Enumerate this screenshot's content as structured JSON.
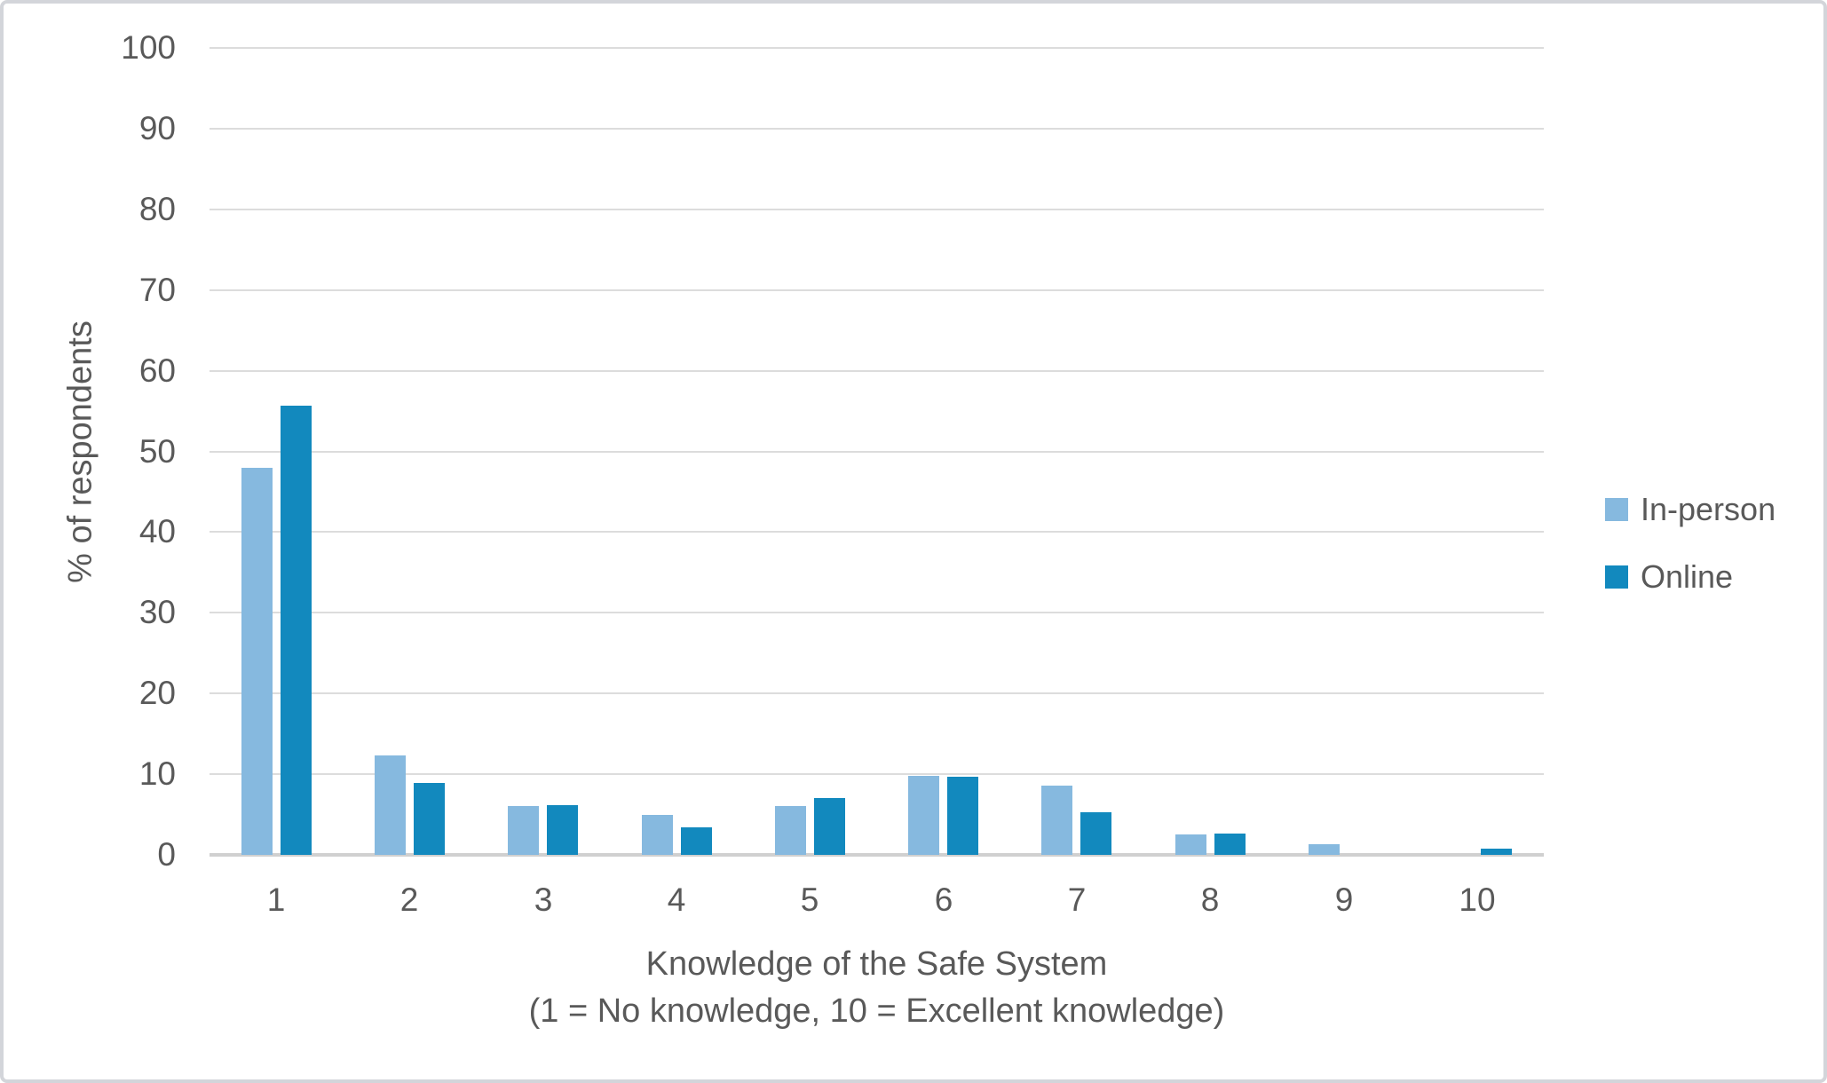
{
  "frame": {
    "background": "#ffffff",
    "border_color": "#d3d5da"
  },
  "chart_data": {
    "type": "bar",
    "title": "",
    "categories": [
      "1",
      "2",
      "3",
      "4",
      "5",
      "6",
      "7",
      "8",
      "9",
      "10"
    ],
    "series": [
      {
        "name": "In-person",
        "color": "#86B9DF",
        "values": [
          48.0,
          12.3,
          6.1,
          4.9,
          6.1,
          9.8,
          8.6,
          2.5,
          1.3,
          0
        ]
      },
      {
        "name": "Online",
        "color": "#1289BE",
        "values": [
          55.7,
          8.9,
          6.2,
          3.4,
          7.0,
          9.7,
          5.3,
          2.6,
          0,
          0.8
        ]
      }
    ],
    "xlabel": "Knowledge of the Safe System",
    "xlabel_note": "(1 = No knowledge, 10 = Excellent knowledge)",
    "ylabel": "% of respondents",
    "ylim": [
      0,
      100
    ],
    "yticks": [
      0,
      10,
      20,
      30,
      40,
      50,
      60,
      70,
      80,
      90,
      100
    ],
    "grid": "horizontal",
    "legend_position": "right",
    "text_color": "#595959",
    "gridline_color": "#DCDCDC",
    "axis_line_color": "#D0D0D0"
  }
}
